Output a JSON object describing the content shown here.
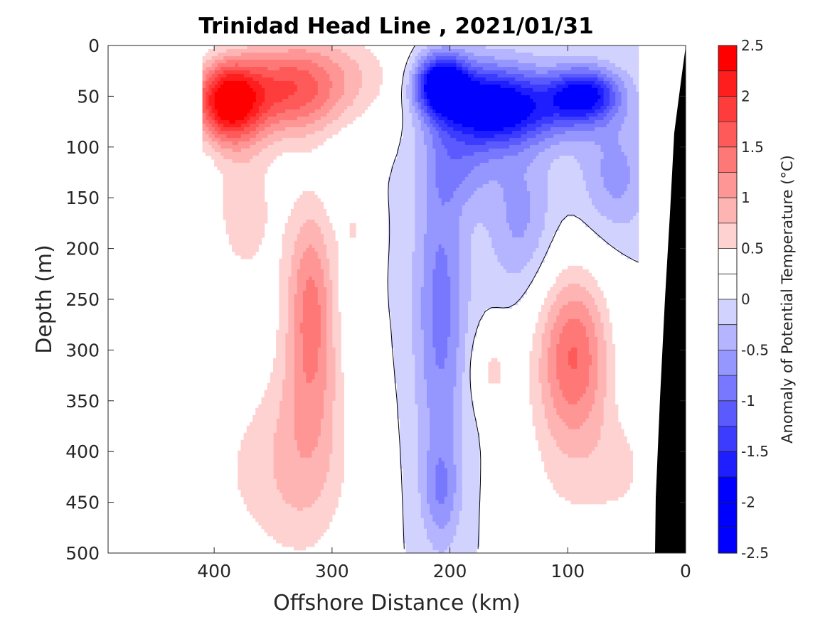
{
  "chart_data": {
    "type": "heatmap",
    "subtype": "filled contour section",
    "title": "Trinidad Head Line , 2021/01/31",
    "xlabel": "Offshore Distance (km)",
    "ylabel": "Depth (m)",
    "xlim": [
      490,
      0
    ],
    "ylim": [
      500,
      0
    ],
    "x_reversed": true,
    "y_reversed": true,
    "xticks": [
      400,
      300,
      200,
      100,
      0
    ],
    "yticks": [
      0,
      50,
      100,
      150,
      200,
      250,
      300,
      350,
      400,
      450,
      500
    ],
    "colorbar": {
      "label": "Anomaly of Potential Temperature (°C)",
      "range": [
        -2.5,
        2.5
      ],
      "ticks": [
        2.5,
        2,
        1.5,
        1,
        0.5,
        0,
        -0.5,
        -1,
        -1.5,
        -2,
        -2.5
      ],
      "tick_labels": [
        "2.5",
        "2",
        "1.5",
        "1",
        "0.5",
        "0",
        "-0.5",
        "-1",
        "-1.5",
        "-2",
        "-2.5"
      ],
      "levels": [
        2.25,
        2.0,
        1.75,
        1.5,
        1.25,
        1.0,
        0.75,
        0.5,
        0.25,
        0.0,
        -0.25,
        -0.5,
        -0.75,
        -1.0,
        -1.25,
        -1.5,
        -1.75,
        -2.0,
        -2.25,
        -2.5
      ],
      "colors": [
        "#ff0000",
        "#ff1e1e",
        "#ff3c3c",
        "#ff5a5a",
        "#ff7878",
        "#ff9696",
        "#ffb4b4",
        "#ffd2d2",
        "#ffffff",
        "#ffffff",
        "#d2d2ff",
        "#b4b4ff",
        "#9696ff",
        "#7878ff",
        "#5a5aff",
        "#3c3cff",
        "#1e1eff",
        "#0000ff",
        "#0000ff",
        "#0000ff"
      ]
    },
    "data_extent_km": [
      410,
      40
    ],
    "zero_contour_color": "#000000",
    "bathymetry_color": "#000000",
    "features": [
      {
        "name": "warm core",
        "x_km": 390,
        "depth_m": 50,
        "anomaly": 2.0
      },
      {
        "name": "cold core",
        "x_km": 210,
        "depth_m": 40,
        "anomaly": -2.0
      },
      {
        "name": "cold core",
        "x_km": 85,
        "depth_m": 50,
        "anomaly": -1.5
      },
      {
        "name": "warm anomaly",
        "x_km": 320,
        "depth_m": 250,
        "anomaly": 1.0
      },
      {
        "name": "warm anomaly",
        "x_km": 95,
        "depth_m": 300,
        "anomaly": 1.0
      },
      {
        "name": "cold tongue",
        "x_km": 210,
        "depth_m": 300,
        "anomaly": -0.5
      }
    ]
  }
}
